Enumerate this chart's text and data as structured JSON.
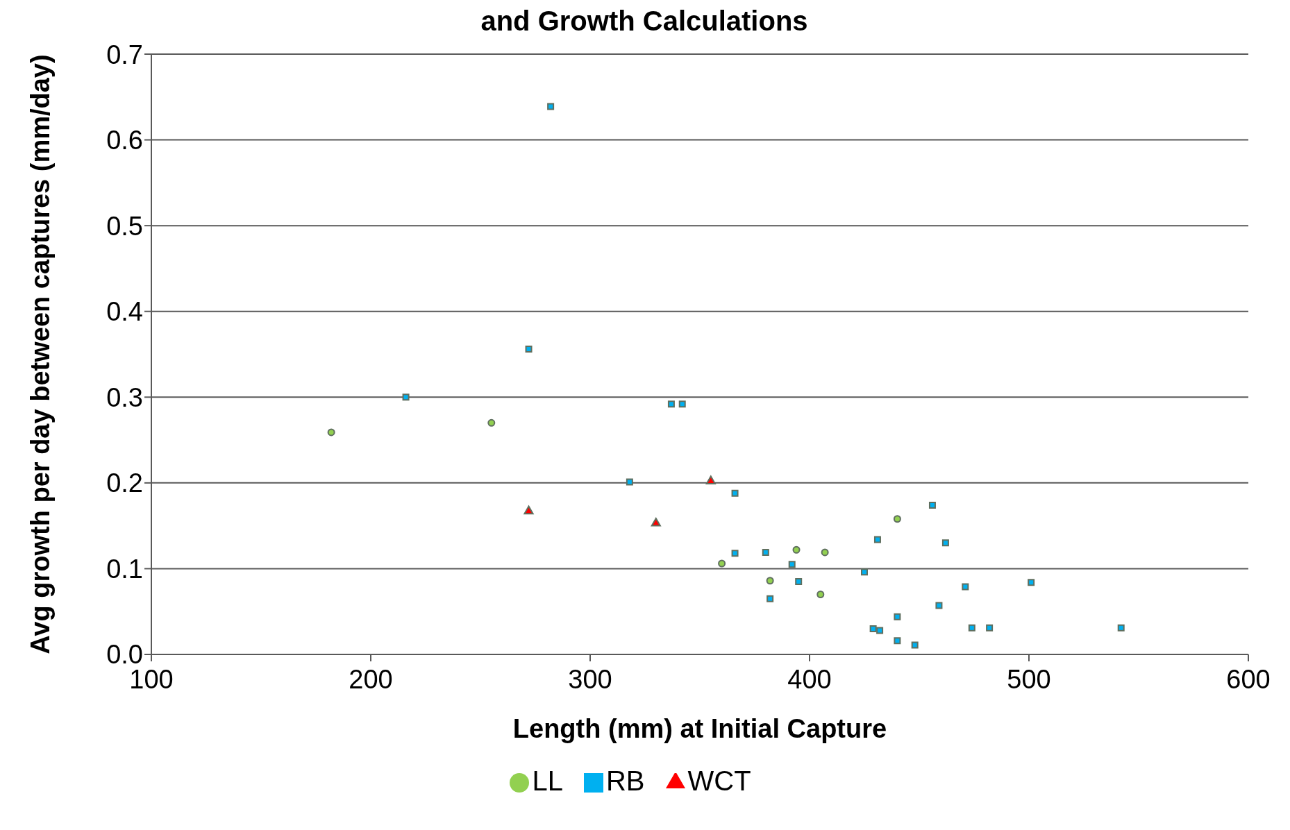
{
  "chart_data": {
    "type": "scatter",
    "title": "and Growth Calculations",
    "xlabel": "Length (mm) at Initial Capture",
    "ylabel": "Avg  growth per day between captures (mm/day)",
    "xlim": [
      100,
      600
    ],
    "xticks": [
      100,
      200,
      300,
      400,
      500,
      600
    ],
    "ylim": [
      0,
      0.7
    ],
    "yticks": [
      {
        "value": 0,
        "label": "0.0"
      },
      {
        "value": 0.1,
        "label": "0.1"
      },
      {
        "value": 0.2,
        "label": "0.2"
      },
      {
        "value": 0.3,
        "label": "0.3"
      },
      {
        "value": 0.4,
        "label": "0.4"
      },
      {
        "value": 0.5,
        "label": "0.5"
      },
      {
        "value": 0.6,
        "label": "0.6"
      },
      {
        "value": 0.7,
        "label": "0.7"
      }
    ],
    "grid": "y",
    "legend": "bottom",
    "series": [
      {
        "name": "LL",
        "color": "#92d050",
        "marker": "circle",
        "x": [
          182,
          255,
          360,
          382,
          394,
          405,
          407,
          440
        ],
        "values": [
          0.259,
          0.27,
          0.106,
          0.086,
          0.122,
          0.07,
          0.119,
          0.158
        ]
      },
      {
        "name": "RB",
        "color": "#00b0f0",
        "marker": "square",
        "x": [
          216,
          272,
          282,
          318,
          337,
          342,
          366,
          366,
          380,
          382,
          392,
          395,
          425,
          429,
          432,
          440,
          440,
          448,
          431,
          456,
          459,
          462,
          471,
          474,
          482,
          501,
          542
        ],
        "values": [
          0.3,
          0.356,
          0.639,
          0.201,
          0.292,
          0.292,
          0.188,
          0.118,
          0.119,
          0.065,
          0.105,
          0.085,
          0.096,
          0.03,
          0.028,
          0.044,
          0.016,
          0.011,
          0.134,
          0.174,
          0.057,
          0.13,
          0.079,
          0.031,
          0.031,
          0.084,
          0.031
        ]
      },
      {
        "name": "WCT",
        "color": "#ff0000",
        "marker": "triangle",
        "x": [
          272,
          330,
          355
        ],
        "values": [
          0.167,
          0.153,
          0.202
        ]
      }
    ]
  }
}
